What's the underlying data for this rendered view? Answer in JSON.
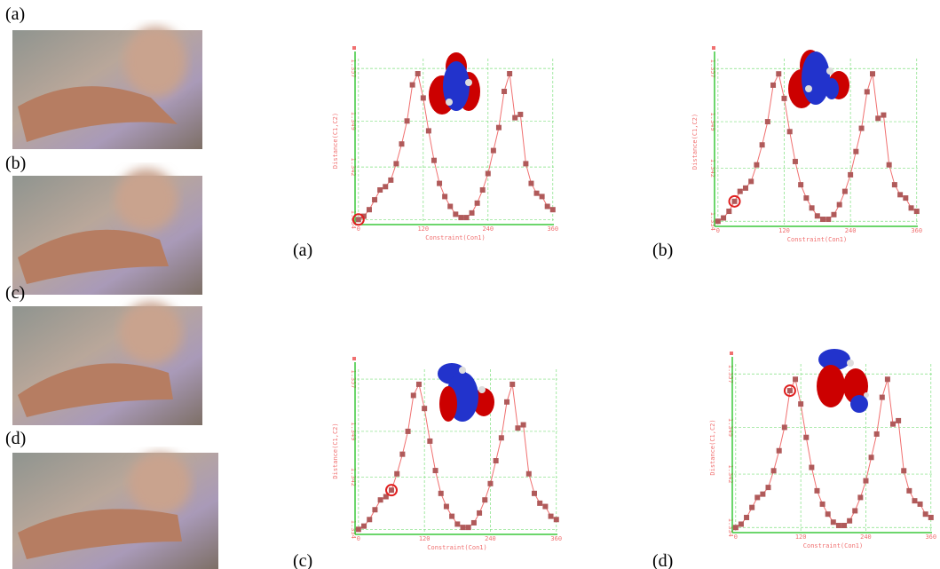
{
  "photos": {
    "labels": [
      "(a)",
      "(b)",
      "(c)",
      "(d)"
    ]
  },
  "chart_data": [
    {
      "type": "line",
      "panel_label": "(a)",
      "xlabel": "Constraint(Con1)",
      "ylabel": "Distance(C1,C2)",
      "x": [
        0,
        10,
        20,
        30,
        40,
        50,
        60,
        70,
        80,
        90,
        100,
        110,
        120,
        130,
        140,
        150,
        160,
        170,
        180,
        190,
        200,
        210,
        220,
        230,
        240,
        250,
        260,
        270,
        280,
        290,
        300,
        310,
        320,
        330,
        340,
        350,
        360
      ],
      "values": [
        1.334,
        1.3345,
        1.3355,
        1.337,
        1.3385,
        1.339,
        1.34,
        1.3425,
        1.3455,
        1.349,
        1.3545,
        1.3562,
        1.3525,
        1.3475,
        1.343,
        1.3395,
        1.3375,
        1.336,
        1.3348,
        1.3343,
        1.3343,
        1.335,
        1.3365,
        1.3385,
        1.341,
        1.3445,
        1.348,
        1.3535,
        1.3562,
        1.3495,
        1.35,
        1.3425,
        1.3395,
        1.338,
        1.3375,
        1.336,
        1.3355
      ],
      "xlim": [
        -3,
        362
      ],
      "ylim": [
        1.3335,
        1.3585
      ],
      "xticks": [
        0,
        120,
        240,
        360
      ],
      "yticks": [
        1.334,
        1.342,
        1.349,
        1.357
      ],
      "color": "#f07070",
      "marker_color": "#b05a5a",
      "grid": true,
      "highlight_index": 0
    },
    {
      "type": "line",
      "panel_label": "(b)",
      "xlabel": "Constraint(Con1)",
      "ylabel": "Distance(C1,C2)",
      "x": [
        0,
        10,
        20,
        30,
        40,
        50,
        60,
        70,
        80,
        90,
        100,
        110,
        120,
        130,
        140,
        150,
        160,
        170,
        180,
        190,
        200,
        210,
        220,
        230,
        240,
        250,
        260,
        270,
        280,
        290,
        300,
        310,
        320,
        330,
        340,
        350,
        360
      ],
      "values": [
        1.334,
        1.3345,
        1.3355,
        1.337,
        1.3385,
        1.339,
        1.34,
        1.3425,
        1.3455,
        1.349,
        1.3545,
        1.3562,
        1.3525,
        1.3475,
        1.343,
        1.3395,
        1.3375,
        1.336,
        1.3348,
        1.3343,
        1.3343,
        1.335,
        1.3365,
        1.3385,
        1.341,
        1.3445,
        1.348,
        1.3535,
        1.3562,
        1.3495,
        1.35,
        1.3425,
        1.3395,
        1.338,
        1.3375,
        1.336,
        1.3355
      ],
      "xlim": [
        -3,
        362
      ],
      "ylim": [
        1.3335,
        1.3585
      ],
      "xticks": [
        0,
        120,
        240,
        360
      ],
      "yticks": [
        1.334,
        1.342,
        1.349,
        1.357
      ],
      "color": "#f07070",
      "marker_color": "#b05a5a",
      "grid": true,
      "highlight_index": 3
    },
    {
      "type": "line",
      "panel_label": "(c)",
      "xlabel": "Constraint(Con1)",
      "ylabel": "Distance(C1,C2)",
      "x": [
        0,
        10,
        20,
        30,
        40,
        50,
        60,
        70,
        80,
        90,
        100,
        110,
        120,
        130,
        140,
        150,
        160,
        170,
        180,
        190,
        200,
        210,
        220,
        230,
        240,
        250,
        260,
        270,
        280,
        290,
        300,
        310,
        320,
        330,
        340,
        350,
        360
      ],
      "values": [
        1.334,
        1.3345,
        1.3355,
        1.337,
        1.3385,
        1.339,
        1.34,
        1.3425,
        1.3455,
        1.349,
        1.3545,
        1.3562,
        1.3525,
        1.3475,
        1.343,
        1.3395,
        1.3375,
        1.336,
        1.3348,
        1.3343,
        1.3343,
        1.335,
        1.3365,
        1.3385,
        1.341,
        1.3445,
        1.348,
        1.3535,
        1.3562,
        1.3495,
        1.35,
        1.3425,
        1.3395,
        1.338,
        1.3375,
        1.336,
        1.3355
      ],
      "xlim": [
        -3,
        362
      ],
      "ylim": [
        1.3335,
        1.3585
      ],
      "xticks": [
        0,
        120,
        240,
        360
      ],
      "yticks": [
        1.334,
        1.342,
        1.349,
        1.357
      ],
      "color": "#f07070",
      "marker_color": "#b05a5a",
      "grid": true,
      "highlight_index": 6
    },
    {
      "type": "line",
      "panel_label": "(d)",
      "xlabel": "Constraint(Con1)",
      "ylabel": "Distance(C1,C2)",
      "x": [
        0,
        10,
        20,
        30,
        40,
        50,
        60,
        70,
        80,
        90,
        100,
        110,
        120,
        130,
        140,
        150,
        160,
        170,
        180,
        190,
        200,
        210,
        220,
        230,
        240,
        250,
        260,
        270,
        280,
        290,
        300,
        310,
        320,
        330,
        340,
        350,
        360
      ],
      "values": [
        1.334,
        1.3345,
        1.3355,
        1.337,
        1.3385,
        1.339,
        1.34,
        1.3425,
        1.3455,
        1.349,
        1.3545,
        1.3562,
        1.3525,
        1.3475,
        1.343,
        1.3395,
        1.3375,
        1.336,
        1.3348,
        1.3343,
        1.3343,
        1.335,
        1.3365,
        1.3385,
        1.341,
        1.3445,
        1.348,
        1.3535,
        1.3562,
        1.3495,
        1.35,
        1.3425,
        1.3395,
        1.338,
        1.3375,
        1.336,
        1.3355
      ],
      "xlim": [
        -3,
        362
      ],
      "ylim": [
        1.3335,
        1.3585
      ],
      "xticks": [
        0,
        120,
        240,
        360
      ],
      "yticks": [
        1.334,
        1.342,
        1.349,
        1.357
      ],
      "color": "#f07070",
      "marker_color": "#b05a5a",
      "grid": true,
      "highlight_index": 10
    }
  ]
}
